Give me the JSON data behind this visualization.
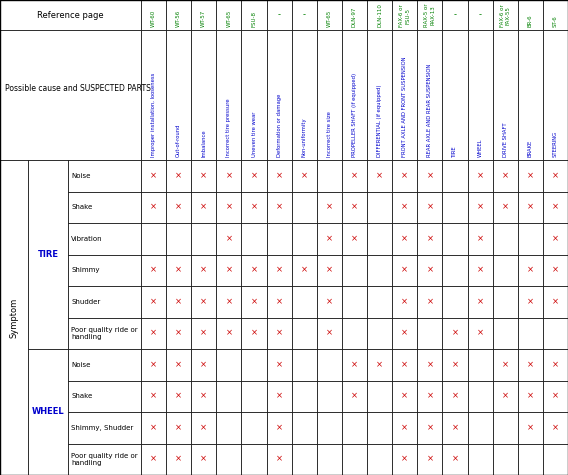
{
  "ref_label": "Reference page",
  "cause_label": "Possible cause and SUSPECTED PARTS",
  "symptom_label": "Symptom",
  "ref_pages": [
    "WT-60",
    "WT-56",
    "WT-57",
    "WT-65",
    "FSU-8",
    "-",
    "-",
    "WT-65",
    "DLN-97",
    "DLN-110",
    "FAX-6 or\nFSU-5",
    "RAX-5 or\nRAX-13",
    "-",
    "-",
    "FAX-6 or\nFAX-55",
    "BR-6",
    "ST-6"
  ],
  "causes": [
    "Improper installation, looseness",
    "Out-of-round",
    "Imbalance",
    "Incorrect tire pressure",
    "Uneven tire wear",
    "Deformation or damage",
    "Non-uniformity",
    "Incorrect tire size",
    "PROPELLER SHAFT (if equipped)",
    "DIFFERENTIAL (if equipped)",
    "FRONT AXLE AND FRONT SUSPENSION",
    "REAR AXLE AND REAR SUSPENSION",
    "TIRE",
    "WHEEL",
    "DRIVE SHAFT",
    "BRAKE",
    "STEERING"
  ],
  "tire_symptoms": [
    "Noise",
    "Shake",
    "Vibration",
    "Shimmy",
    "Shudder",
    "Poor quality ride or\nhandling"
  ],
  "wheel_symptoms": [
    "Noise",
    "Shake",
    "Shimmy, Shudder",
    "Poor quality ride or\nhandling"
  ],
  "marks_tire": {
    "Noise": [
      1,
      1,
      1,
      1,
      1,
      1,
      1,
      0,
      1,
      1,
      1,
      1,
      0,
      1,
      1,
      1,
      1
    ],
    "Shake": [
      1,
      1,
      1,
      1,
      1,
      1,
      0,
      1,
      1,
      0,
      1,
      1,
      0,
      1,
      1,
      1,
      1
    ],
    "Vibration": [
      0,
      0,
      0,
      1,
      0,
      0,
      0,
      1,
      1,
      0,
      1,
      1,
      0,
      1,
      0,
      0,
      1
    ],
    "Shimmy": [
      1,
      1,
      1,
      1,
      1,
      1,
      1,
      1,
      0,
      0,
      1,
      1,
      0,
      1,
      0,
      1,
      1
    ],
    "Shudder": [
      1,
      1,
      1,
      1,
      1,
      1,
      0,
      1,
      0,
      0,
      1,
      1,
      0,
      1,
      0,
      1,
      1
    ],
    "Poor quality ride or\nhandling": [
      1,
      1,
      1,
      1,
      1,
      1,
      0,
      1,
      0,
      0,
      1,
      0,
      1,
      1,
      0,
      0,
      0
    ]
  },
  "marks_wheel": {
    "Noise": [
      1,
      1,
      1,
      0,
      0,
      1,
      0,
      0,
      1,
      1,
      1,
      1,
      1,
      0,
      1,
      1,
      1
    ],
    "Shake": [
      1,
      1,
      1,
      0,
      0,
      1,
      0,
      0,
      1,
      0,
      1,
      1,
      1,
      0,
      1,
      1,
      1
    ],
    "Shimmy, Shudder": [
      1,
      1,
      1,
      0,
      0,
      1,
      0,
      0,
      0,
      0,
      1,
      1,
      1,
      0,
      0,
      1,
      1
    ],
    "Poor quality ride or\nhandling": [
      1,
      1,
      1,
      0,
      0,
      1,
      0,
      0,
      0,
      0,
      1,
      1,
      1,
      0,
      0,
      0,
      0
    ]
  },
  "ref_color": "#008000",
  "cause_color": "#0000cc",
  "mark_color": "#cc0000",
  "group_color": "#0000cc",
  "black": "#000000",
  "white": "#ffffff"
}
